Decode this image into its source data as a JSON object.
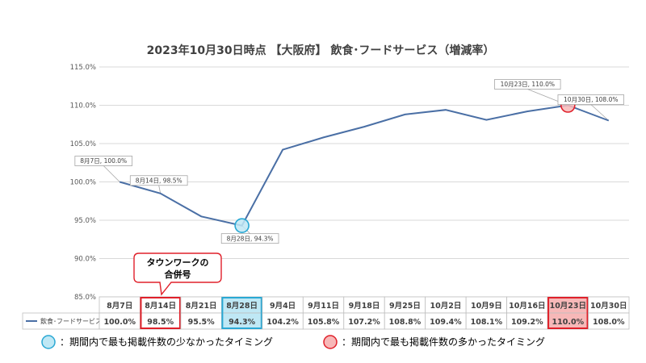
{
  "chart_data": {
    "type": "line",
    "title": "2023年10月30日時点 【大阪府】 飲食･フードサービス（増減率）",
    "categories": [
      "8月7日",
      "8月14日",
      "8月21日",
      "8月28日",
      "9月4日",
      "9月11日",
      "9月18日",
      "9月25日",
      "10月2日",
      "10月9日",
      "10月16日",
      "10月23日",
      "10月30日"
    ],
    "series": [
      {
        "name": "飲食･フードサービス",
        "color": "#4a6fa5",
        "values": [
          100.0,
          98.5,
          95.5,
          94.3,
          104.2,
          105.8,
          107.2,
          108.8,
          109.4,
          108.1,
          109.2,
          110.0,
          108.0
        ],
        "value_labels": [
          "100.0%",
          "98.5%",
          "95.5%",
          "94.3%",
          "104.2%",
          "105.8%",
          "107.2%",
          "108.8%",
          "109.4%",
          "108.1%",
          "109.2%",
          "110.0%",
          "108.0%"
        ]
      }
    ],
    "ylim": [
      85,
      115
    ],
    "yticks": [
      85,
      90,
      95,
      100,
      105,
      110,
      115
    ],
    "ytick_labels": [
      "85.0%",
      "90.0%",
      "95.0%",
      "100.0%",
      "105.0%",
      "110.0%",
      "115.0%"
    ],
    "grid": true,
    "data_labels": [
      {
        "index": 0,
        "text": "8月7日, 100.0%"
      },
      {
        "index": 1,
        "text": "8月14日, 98.5%"
      },
      {
        "index": 3,
        "text": "8月28日, 94.3%"
      },
      {
        "index": 11,
        "text": "10月23日, 110.0%"
      },
      {
        "index": 12,
        "text": "10月30日, 108.0%"
      }
    ],
    "highlights": [
      {
        "index": 3,
        "kind": "min",
        "fill": "#bfe8f5",
        "stroke": "#29a8d4"
      },
      {
        "index": 11,
        "kind": "max",
        "fill": "#f7b8b8",
        "stroke": "#e0202a"
      }
    ],
    "table_highlight_min_index": 3,
    "table_highlight_max_index": 11,
    "table_callout_index": 1
  },
  "callout": {
    "line1": "タウンワークの",
    "line2": "合併号",
    "stroke": "#e0202a"
  },
  "legend": {
    "min_text": "：期間内で最も掲載件数の少なかったタイミング",
    "max_text": "：期間内で最も掲載件数の多かったタイミング"
  }
}
